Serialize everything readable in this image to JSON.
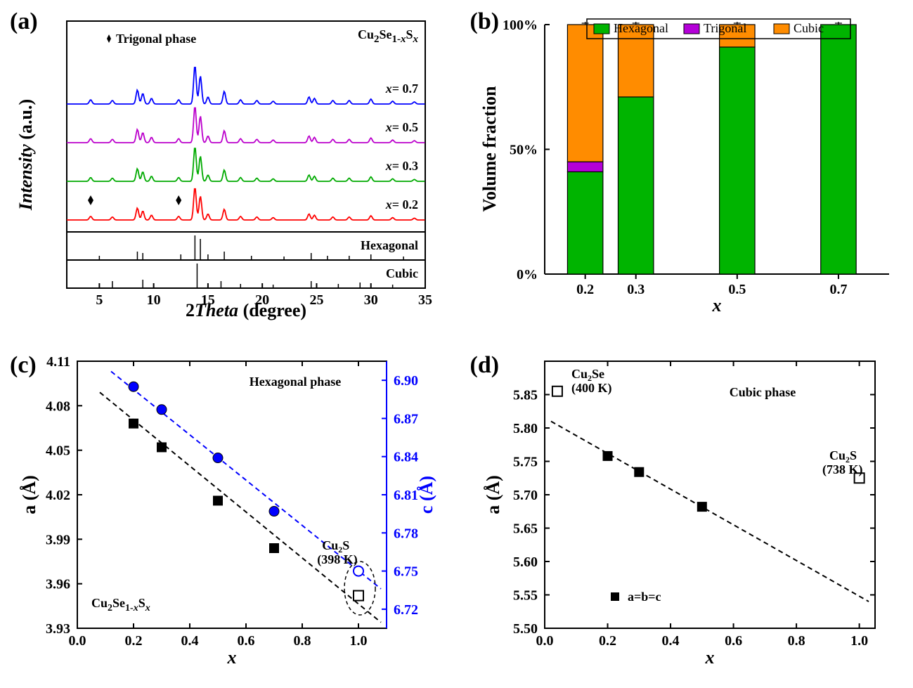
{
  "panels": {
    "a": {
      "label": "(a)",
      "title": "Cu₂Se₁₋ₓSₓ",
      "title_sub": "1-x",
      "title_sub2": "x",
      "xlabel": "2Theta (degree)",
      "ylabel": "Intensity (a.u.)",
      "xlim": [
        2,
        35
      ],
      "xticks": [
        5,
        10,
        15,
        20,
        25,
        30,
        35
      ],
      "marker_label": "Trigonal phase",
      "refs": [
        "Cubic",
        "Hexagonal"
      ],
      "traces": [
        {
          "label": "x= 0.2",
          "color": "#ff0000",
          "y_off": 0
        },
        {
          "label": "x= 0.3",
          "color": "#00aa00",
          "y_off": 55
        },
        {
          "label": "x= 0.5",
          "color": "#bb00cc",
          "y_off": 110
        },
        {
          "label": "x= 0.7",
          "color": "#0000ff",
          "y_off": 165
        }
      ],
      "trigonal_markers_x": [
        4.2,
        12.3
      ]
    },
    "b": {
      "label": "(b)",
      "xlabel": "x",
      "ylabel": "Volume fraction",
      "yticks": [
        0,
        50,
        100
      ],
      "ytick_labels": [
        "0%",
        "50%",
        "100%"
      ],
      "categories": [
        "0.2",
        "0.3",
        "0.5",
        "0.7"
      ],
      "category_x": [
        0.2,
        0.3,
        0.5,
        0.7
      ],
      "legend": [
        {
          "label": "Hexagonal",
          "color": "#00b400"
        },
        {
          "label": "Trigonal",
          "color": "#b400d8"
        },
        {
          "label": "Cubic",
          "color": "#ff8c00"
        }
      ],
      "bars": [
        {
          "x": 0.2,
          "hex": 41,
          "tri": 4,
          "cub": 55
        },
        {
          "x": 0.3,
          "hex": 71,
          "tri": 0,
          "cub": 29
        },
        {
          "x": 0.5,
          "hex": 91,
          "tri": 0,
          "cub": 9
        },
        {
          "x": 0.7,
          "hex": 100,
          "tri": 0,
          "cub": 0
        }
      ],
      "bar_width": 0.07,
      "colors": {
        "hex": "#00b400",
        "tri": "#b400d8",
        "cub": "#ff8c00"
      }
    },
    "c": {
      "label": "(c)",
      "title": "Hexagonal phase",
      "formula": "Cu₂Se₁₋ₓSₓ",
      "xlabel": "x",
      "ylabel_left": "a (Å)",
      "ylabel_right": "c (Å)",
      "xlim": [
        0.0,
        1.1
      ],
      "xticks": [
        0.0,
        0.2,
        0.4,
        0.6,
        0.8,
        1.0
      ],
      "ylim_left": [
        3.93,
        4.11
      ],
      "yticks_left": [
        3.93,
        3.96,
        3.99,
        4.02,
        4.05,
        4.08,
        4.11
      ],
      "ylim_right": [
        6.705,
        6.915
      ],
      "yticks_right": [
        6.72,
        6.75,
        6.78,
        6.81,
        6.84,
        6.87,
        6.9
      ],
      "series_a": {
        "color": "#000000",
        "points": [
          {
            "x": 0.2,
            "y": 4.068
          },
          {
            "x": 0.3,
            "y": 4.052
          },
          {
            "x": 0.5,
            "y": 4.016
          },
          {
            "x": 0.7,
            "y": 3.984
          }
        ],
        "open_point": {
          "x": 1.0,
          "y": 3.952
        },
        "marker_size": 7
      },
      "series_c": {
        "color": "#0000ff",
        "points": [
          {
            "x": 0.2,
            "y": 6.895
          },
          {
            "x": 0.3,
            "y": 6.877
          },
          {
            "x": 0.5,
            "y": 6.839
          },
          {
            "x": 0.7,
            "y": 6.797
          }
        ],
        "open_point": {
          "x": 1.0,
          "y": 6.75
        },
        "marker_size": 7
      },
      "annot": "Cu₂S\n(398 K)"
    },
    "d": {
      "label": "(d)",
      "title": "Cubic phase",
      "xlabel": "x",
      "ylabel": "a (Å)",
      "xlim": [
        0.0,
        1.05
      ],
      "xticks": [
        0.0,
        0.2,
        0.4,
        0.6,
        0.8,
        1.0
      ],
      "ylim": [
        5.5,
        5.9
      ],
      "yticks": [
        5.5,
        5.55,
        5.6,
        5.65,
        5.7,
        5.75,
        5.8,
        5.85
      ],
      "series": {
        "color": "#000000",
        "points": [
          {
            "x": 0.2,
            "y": 5.758
          },
          {
            "x": 0.3,
            "y": 5.734
          },
          {
            "x": 0.5,
            "y": 5.682
          }
        ],
        "open_points": [
          {
            "x": 0.0,
            "y": 5.858
          },
          {
            "x": 1.0,
            "y": 5.725
          }
        ],
        "marker_size": 7
      },
      "annot_se": "Cu₂Se\n(400 K)",
      "annot_s": "Cu₂S\n(738 K)",
      "legend": "a=b=c"
    }
  },
  "fontsize": {
    "axis_title": 26,
    "tick": 20,
    "annot": 18
  }
}
